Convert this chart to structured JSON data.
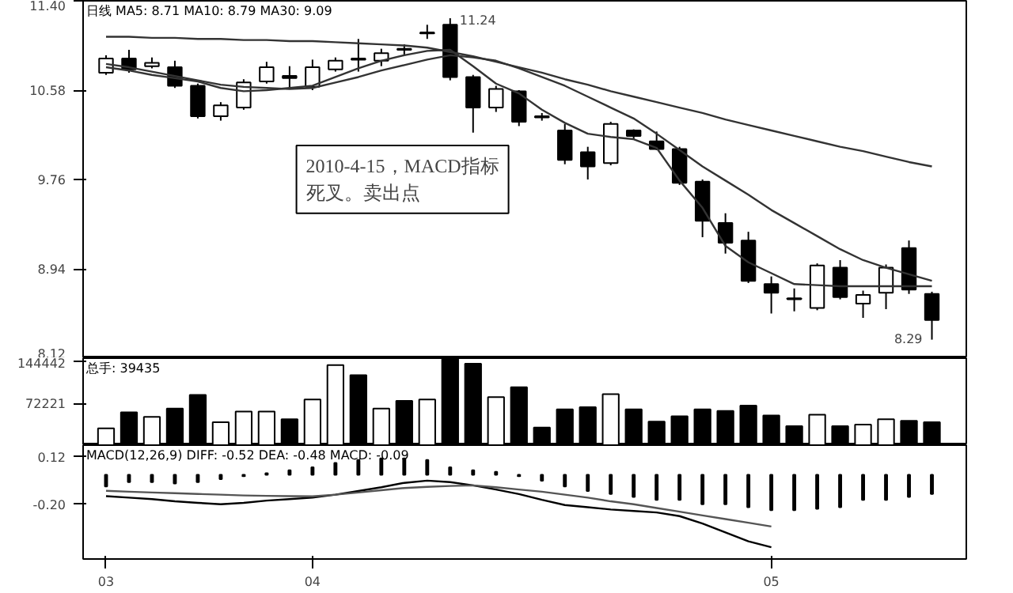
{
  "chart_data": [
    {
      "type": "candlestick",
      "title": "日线  MA5: 8.71  MA10: 8.79  MA30: 9.09",
      "categories": [
        null,
        null,
        null,
        null,
        null,
        null,
        null,
        null,
        null,
        null,
        null,
        null,
        null,
        null,
        null,
        null,
        null,
        null,
        null,
        null,
        null,
        null,
        null,
        null,
        null,
        null,
        null,
        null,
        null,
        null,
        null,
        null,
        null,
        null,
        null,
        null,
        null
      ],
      "ohlc": [
        [
          10.74,
          10.9,
          10.72,
          10.87
        ],
        [
          10.87,
          10.95,
          10.74,
          10.77
        ],
        [
          10.8,
          10.88,
          10.78,
          10.83
        ],
        [
          10.79,
          10.85,
          10.6,
          10.62
        ],
        [
          10.62,
          10.64,
          10.32,
          10.34
        ],
        [
          10.34,
          10.47,
          10.3,
          10.44
        ],
        [
          10.42,
          10.68,
          10.4,
          10.65
        ],
        [
          10.66,
          10.84,
          10.64,
          10.79
        ],
        [
          10.71,
          10.8,
          10.6,
          10.69
        ],
        [
          10.61,
          10.86,
          10.58,
          10.79
        ],
        [
          10.77,
          10.88,
          10.75,
          10.85
        ],
        [
          10.87,
          11.05,
          10.75,
          10.86
        ],
        [
          10.85,
          10.96,
          10.8,
          10.92
        ],
        [
          10.96,
          11.0,
          10.9,
          10.95
        ],
        [
          11.1,
          11.18,
          11.05,
          11.11
        ],
        [
          11.18,
          11.24,
          10.67,
          10.7
        ],
        [
          10.7,
          10.72,
          10.19,
          10.42
        ],
        [
          10.42,
          10.62,
          10.38,
          10.59
        ],
        [
          10.57,
          10.58,
          10.25,
          10.29
        ],
        [
          10.34,
          10.37,
          10.3,
          10.33
        ],
        [
          10.21,
          10.27,
          9.9,
          9.94
        ],
        [
          10.01,
          10.06,
          9.76,
          9.88
        ],
        [
          9.91,
          10.29,
          9.89,
          10.27
        ],
        [
          10.21,
          10.22,
          10.13,
          10.16
        ],
        [
          10.11,
          10.2,
          10.03,
          10.04
        ],
        [
          10.04,
          10.06,
          9.71,
          9.73
        ],
        [
          9.74,
          9.76,
          9.23,
          9.38
        ],
        [
          9.36,
          9.45,
          9.08,
          9.18
        ],
        [
          9.2,
          9.28,
          8.81,
          8.83
        ],
        [
          8.8,
          8.87,
          8.53,
          8.72
        ],
        [
          8.67,
          8.76,
          8.55,
          8.66
        ],
        [
          8.58,
          8.99,
          8.56,
          8.97
        ],
        [
          8.95,
          9.02,
          8.66,
          8.68
        ],
        [
          8.62,
          8.74,
          8.49,
          8.7
        ],
        [
          8.72,
          8.98,
          8.57,
          8.95
        ],
        [
          9.13,
          9.2,
          8.71,
          8.75
        ],
        [
          8.71,
          8.73,
          8.29,
          8.47
        ]
      ],
      "colors": [
        "#ffffff",
        "#000000",
        "#ffffff",
        "#000000",
        "#000000",
        "#ffffff",
        "#ffffff",
        "#ffffff",
        "#000000",
        "#ffffff",
        "#ffffff",
        "#000000",
        "#ffffff",
        "#000000",
        "#ffffff",
        "#000000",
        "#000000",
        "#ffffff",
        "#000000",
        "#000000",
        "#000000",
        "#000000",
        "#ffffff",
        "#000000",
        "#000000",
        "#000000",
        "#000000",
        "#000000",
        "#000000",
        "#000000",
        "#000000",
        "#ffffff",
        "#000000",
        "#ffffff",
        "#ffffff",
        "#000000",
        "#000000"
      ],
      "series": [
        {
          "type": "line",
          "color": "#333333",
          "values": [
            11.07,
            11.07,
            11.06,
            11.06,
            11.05,
            11.05,
            11.04,
            11.04,
            11.03,
            11.03,
            11.02,
            11.01,
            11.0,
            10.99,
            10.97,
            10.93,
            10.89,
            10.84,
            10.79,
            10.74,
            10.68,
            10.63,
            10.57,
            10.52,
            10.47,
            10.42,
            10.37,
            10.31,
            10.26,
            10.21,
            10.16,
            10.11,
            10.06,
            10.02,
            9.97,
            9.92,
            9.88
          ]
        },
        {
          "type": "line",
          "color": "#333333",
          "values": [
            10.82,
            10.79,
            10.75,
            10.71,
            10.67,
            10.63,
            10.61,
            10.6,
            10.59,
            10.6,
            10.65,
            10.7,
            10.76,
            10.81,
            10.86,
            10.9,
            10.88,
            10.85,
            10.78,
            10.7,
            10.62,
            10.52,
            10.42,
            10.32,
            10.18,
            10.03,
            9.88,
            9.75,
            9.62,
            9.48,
            9.36,
            9.24,
            9.12,
            9.02,
            8.95,
            8.89,
            8.83
          ]
        },
        {
          "type": "line",
          "color": "#333333",
          "values": [
            10.79,
            10.76,
            10.72,
            10.69,
            10.66,
            10.6,
            10.57,
            10.58,
            10.6,
            10.62,
            10.7,
            10.78,
            10.85,
            10.9,
            10.94,
            10.95,
            10.8,
            10.64,
            10.55,
            10.4,
            10.28,
            10.18,
            10.15,
            10.13,
            10.05,
            9.75,
            9.5,
            9.15,
            9.0,
            8.9,
            8.8,
            8.79,
            8.78,
            8.78,
            8.78,
            8.78,
            8.78
          ]
        }
      ],
      "ylim": [
        8.12,
        11.4
      ],
      "yticks": [
        {
          "value": 8.12,
          "label": "8.12"
        },
        {
          "value": 8.94,
          "label": "8.94"
        },
        {
          "value": 9.76,
          "label": "9.76"
        },
        {
          "value": 10.58,
          "label": "10.58"
        },
        {
          "value": 11.4,
          "label": "11.40"
        }
      ],
      "tick_labels": "y",
      "annotations": [
        "11.24",
        "8.29",
        "2010-4-15，MACD指标死叉。卖出点"
      ]
    },
    {
      "type": "bar",
      "title": "总手: 39435",
      "categories": [
        null,
        null,
        null,
        null,
        null,
        null,
        null,
        null,
        null,
        null,
        null,
        null,
        null,
        null,
        null,
        null,
        null,
        null,
        null,
        null,
        null,
        null,
        null,
        null,
        null,
        null,
        null,
        null,
        null,
        null,
        null,
        null,
        null,
        null,
        null,
        null,
        null
      ],
      "values": [
        28900,
        56500,
        48600,
        63000,
        86700,
        39400,
        57800,
        57800,
        44600,
        78800,
        137900,
        120800,
        63000,
        76200,
        78800,
        148400,
        140500,
        82700,
        99800,
        30200,
        61700,
        65600,
        88000,
        61700,
        40700,
        49900,
        61700,
        59100,
        68300,
        51200,
        32800,
        52500,
        32800,
        35500,
        44600,
        42000,
        39435
      ],
      "colors": [
        "#ffffff",
        "#000000",
        "#ffffff",
        "#000000",
        "#000000",
        "#ffffff",
        "#ffffff",
        "#ffffff",
        "#000000",
        "#ffffff",
        "#ffffff",
        "#000000",
        "#ffffff",
        "#000000",
        "#ffffff",
        "#000000",
        "#000000",
        "#ffffff",
        "#000000",
        "#000000",
        "#000000",
        "#000000",
        "#ffffff",
        "#000000",
        "#000000",
        "#000000",
        "#000000",
        "#000000",
        "#000000",
        "#000000",
        "#000000",
        "#ffffff",
        "#000000",
        "#ffffff",
        "#ffffff",
        "#000000",
        "#000000"
      ],
      "ylim": [
        0,
        150000
      ],
      "yticks": [
        72221,
        144442
      ],
      "tick_labels": "y"
    },
    {
      "type": "line",
      "title": "MACD(12,26,9)  DIFF: -0.52  DEA: -0.48  MACD: -0.09",
      "categories": [
        "03",
        null,
        null,
        null,
        null,
        null,
        null,
        null,
        null,
        "04",
        null,
        null,
        null,
        null,
        null,
        null,
        null,
        null,
        null,
        null,
        null,
        null,
        null,
        null,
        null,
        null,
        null,
        null,
        null,
        "05",
        null,
        null,
        null,
        null,
        null,
        null,
        null
      ],
      "series": [
        {
          "type": "bar",
          "color": "#000000",
          "values": [
            -0.08,
            -0.05,
            -0.05,
            -0.06,
            -0.05,
            -0.03,
            -0.01,
            0.01,
            0.03,
            0.05,
            0.08,
            0.1,
            0.11,
            0.11,
            0.1,
            0.05,
            0.03,
            0.02,
            -0.01,
            -0.04,
            -0.08,
            -0.11,
            -0.13,
            -0.15,
            -0.17,
            -0.17,
            -0.2,
            -0.2,
            -0.22,
            -0.24,
            -0.24,
            -0.23,
            -0.22,
            -0.17,
            -0.17,
            -0.15,
            -0.13
          ]
        },
        {
          "type": "line",
          "color": "#000000",
          "values": [
            -0.145,
            -0.155,
            -0.165,
            -0.18,
            -0.19,
            -0.2,
            -0.19,
            -0.175,
            -0.165,
            -0.155,
            -0.135,
            -0.11,
            -0.085,
            -0.055,
            -0.04,
            -0.05,
            -0.072,
            -0.1,
            -0.131,
            -0.17,
            -0.205,
            -0.22,
            -0.235,
            -0.245,
            -0.255,
            -0.28,
            -0.33,
            -0.39,
            -0.45,
            -0.49,
            null,
            null,
            null,
            null,
            null,
            null,
            null
          ]
        },
        {
          "type": "line",
          "color": "#555555",
          "values": [
            -0.109,
            -0.115,
            -0.12,
            -0.125,
            -0.13,
            -0.135,
            -0.14,
            -0.143,
            -0.145,
            -0.146,
            -0.135,
            -0.12,
            -0.105,
            -0.09,
            -0.082,
            -0.076,
            -0.072,
            -0.085,
            -0.1,
            -0.115,
            -0.135,
            -0.155,
            -0.18,
            -0.2,
            -0.225,
            -0.25,
            -0.275,
            -0.3,
            -0.325,
            -0.35,
            null,
            null,
            null,
            null,
            null,
            null,
            null
          ]
        }
      ],
      "ylim": [
        -0.57,
        0.2
      ],
      "yticks": [
        {
          "value": 0.12,
          "label": "0.12"
        },
        {
          "value": -0.2,
          "label": "-0.20"
        }
      ]
    }
  ]
}
